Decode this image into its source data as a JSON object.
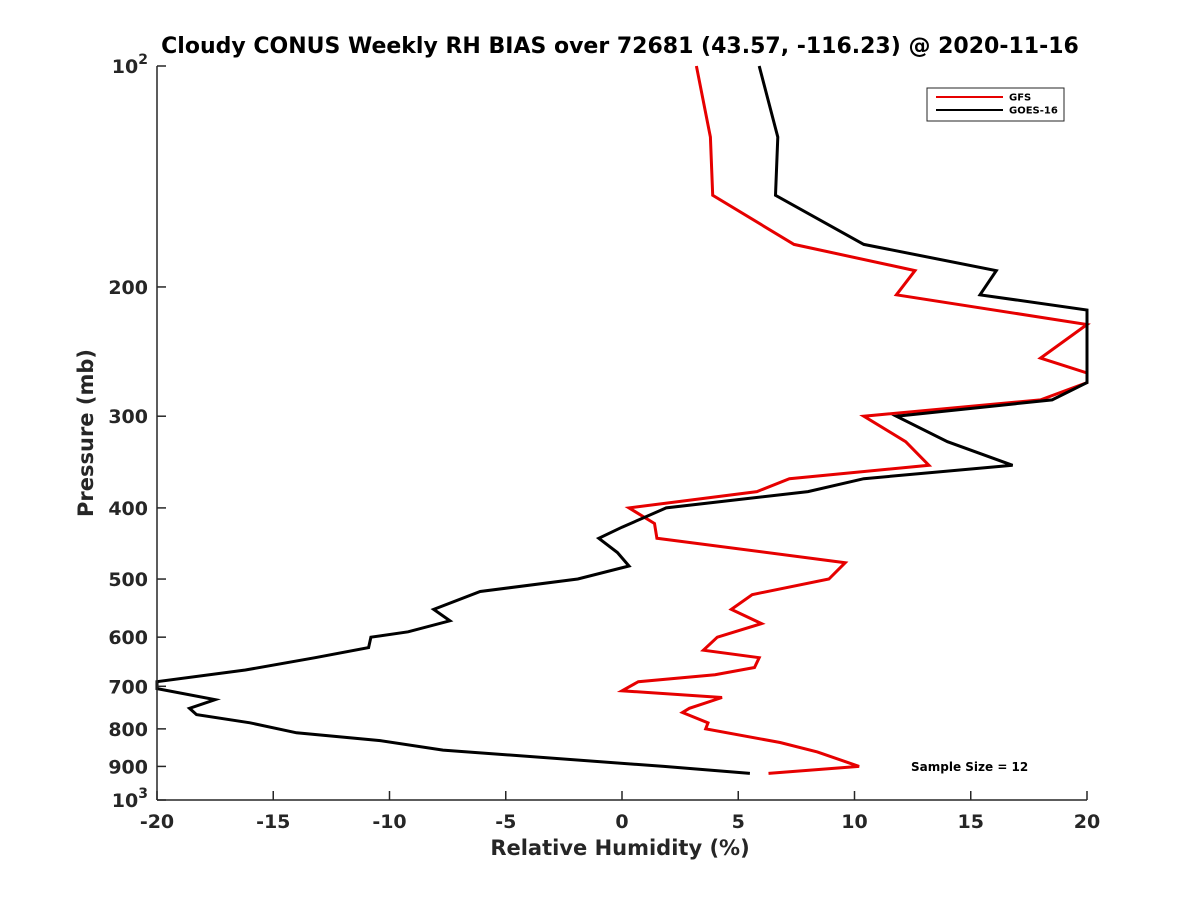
{
  "chart_data": {
    "type": "line",
    "title": "Cloudy CONUS Weekly RH BIAS over 72681 (43.57, -116.23) @ 2020-11-16",
    "xlabel": "Relative Humidity (%)",
    "ylabel": "Pressure (mb)",
    "xlim": [
      -20,
      20
    ],
    "ylim": [
      100,
      1000
    ],
    "y_scale": "log",
    "y_reversed": true,
    "xticks": [
      -20,
      -15,
      -10,
      -5,
      0,
      5,
      10,
      15,
      20
    ],
    "xtick_labels": [
      "-20",
      "-15",
      "-10",
      "-5",
      "0",
      "5",
      "10",
      "15",
      "20"
    ],
    "yticks": [
      {
        "value": 100,
        "base": "10",
        "exp": "2"
      },
      {
        "value": 200,
        "label": "200"
      },
      {
        "value": 300,
        "label": "300"
      },
      {
        "value": 400,
        "label": "400"
      },
      {
        "value": 500,
        "label": "500"
      },
      {
        "value": 600,
        "label": "600"
      },
      {
        "value": 700,
        "label": "700"
      },
      {
        "value": 800,
        "label": "800"
      },
      {
        "value": 900,
        "label": "900"
      },
      {
        "value": 1000,
        "base": "10",
        "exp": "3"
      }
    ],
    "legend": {
      "position": "top-right"
    },
    "grid": false,
    "annotation": "Sample Size = 12",
    "series": [
      {
        "name": "GFS",
        "color": "#e60000",
        "points": [
          {
            "x": 3.2,
            "y": 100
          },
          {
            "x": 3.8,
            "y": 125
          },
          {
            "x": 3.9,
            "y": 150
          },
          {
            "x": 7.4,
            "y": 175
          },
          {
            "x": 12.6,
            "y": 190
          },
          {
            "x": 11.8,
            "y": 205
          },
          {
            "x": 20.0,
            "y": 225
          },
          {
            "x": 18.0,
            "y": 250
          },
          {
            "x": 20.0,
            "y": 262
          },
          {
            "x": 20.0,
            "y": 270
          },
          {
            "x": 18.0,
            "y": 285
          },
          {
            "x": 10.4,
            "y": 300
          },
          {
            "x": 12.2,
            "y": 325
          },
          {
            "x": 13.2,
            "y": 350
          },
          {
            "x": 7.2,
            "y": 365
          },
          {
            "x": 5.8,
            "y": 380
          },
          {
            "x": 0.3,
            "y": 400
          },
          {
            "x": 1.4,
            "y": 420
          },
          {
            "x": 1.5,
            "y": 440
          },
          {
            "x": 9.6,
            "y": 475
          },
          {
            "x": 8.9,
            "y": 500
          },
          {
            "x": 5.6,
            "y": 525
          },
          {
            "x": 4.7,
            "y": 550
          },
          {
            "x": 6.0,
            "y": 575
          },
          {
            "x": 4.1,
            "y": 600
          },
          {
            "x": 3.5,
            "y": 625
          },
          {
            "x": 5.9,
            "y": 640
          },
          {
            "x": 5.7,
            "y": 660
          },
          {
            "x": 4.0,
            "y": 675
          },
          {
            "x": 0.7,
            "y": 690
          },
          {
            "x": 0.0,
            "y": 710
          },
          {
            "x": 4.3,
            "y": 725
          },
          {
            "x": 2.9,
            "y": 750
          },
          {
            "x": 2.6,
            "y": 760
          },
          {
            "x": 3.7,
            "y": 785
          },
          {
            "x": 3.6,
            "y": 800
          },
          {
            "x": 6.8,
            "y": 835
          },
          {
            "x": 8.4,
            "y": 860
          },
          {
            "x": 10.2,
            "y": 900
          },
          {
            "x": 6.3,
            "y": 920
          }
        ]
      },
      {
        "name": "GOES-16",
        "color": "#000000",
        "points": [
          {
            "x": 5.9,
            "y": 100
          },
          {
            "x": 6.7,
            "y": 125
          },
          {
            "x": 6.6,
            "y": 150
          },
          {
            "x": 10.4,
            "y": 175
          },
          {
            "x": 16.1,
            "y": 190
          },
          {
            "x": 15.4,
            "y": 205
          },
          {
            "x": 20.0,
            "y": 215
          },
          {
            "x": 20.0,
            "y": 270
          },
          {
            "x": 18.5,
            "y": 285
          },
          {
            "x": 11.8,
            "y": 300
          },
          {
            "x": 14.0,
            "y": 325
          },
          {
            "x": 16.8,
            "y": 350
          },
          {
            "x": 10.4,
            "y": 365
          },
          {
            "x": 8.0,
            "y": 380
          },
          {
            "x": 1.9,
            "y": 400
          },
          {
            "x": 0.0,
            "y": 425
          },
          {
            "x": -1.0,
            "y": 440
          },
          {
            "x": -0.2,
            "y": 460
          },
          {
            "x": 0.3,
            "y": 480
          },
          {
            "x": -1.9,
            "y": 500
          },
          {
            "x": -6.1,
            "y": 520
          },
          {
            "x": -8.1,
            "y": 550
          },
          {
            "x": -7.4,
            "y": 570
          },
          {
            "x": -9.2,
            "y": 590
          },
          {
            "x": -10.8,
            "y": 600
          },
          {
            "x": -10.9,
            "y": 620
          },
          {
            "x": -13.2,
            "y": 640
          },
          {
            "x": -16.2,
            "y": 665
          },
          {
            "x": -20.0,
            "y": 690
          },
          {
            "x": -20.0,
            "y": 705
          },
          {
            "x": -17.5,
            "y": 730
          },
          {
            "x": -18.6,
            "y": 750
          },
          {
            "x": -18.3,
            "y": 765
          },
          {
            "x": -16.0,
            "y": 785
          },
          {
            "x": -14.0,
            "y": 810
          },
          {
            "x": -10.4,
            "y": 830
          },
          {
            "x": -7.7,
            "y": 855
          },
          {
            "x": 1.8,
            "y": 900
          },
          {
            "x": 5.5,
            "y": 920
          }
        ]
      }
    ]
  }
}
